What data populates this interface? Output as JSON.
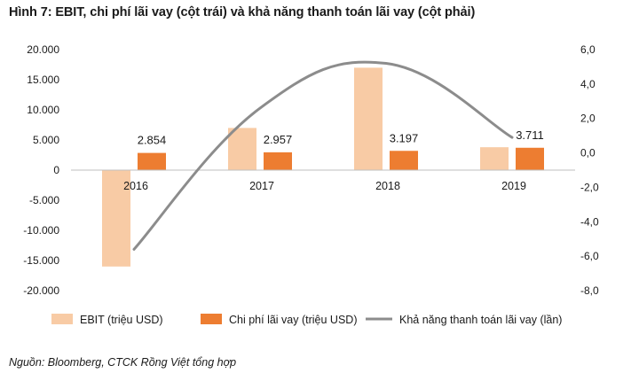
{
  "title": "Hình 7: EBIT, chi phí lãi vay (cột trái) và khả năng thanh toán lãi vay (cột phải)",
  "source": "Nguồn: Bloomberg, CTCK Rồng Việt tổng hợp",
  "colors": {
    "ebit": "#f8cba5",
    "interest": "#ed7d31",
    "coverage": "#8c8c8c",
    "axis": "#bfbfbf"
  },
  "chart_data": {
    "type": "bar",
    "categories": [
      "2016",
      "2017",
      "2018",
      "2019"
    ],
    "left_axis": {
      "ylim": [
        -20000,
        20000
      ],
      "ticks": [
        "-20.000",
        "-15.000",
        "-10.000",
        "-5.000",
        "0",
        "5.000",
        "10.000",
        "15.000",
        "20.000"
      ]
    },
    "right_axis": {
      "ylim": [
        -8,
        6
      ],
      "ticks": [
        "-8,0",
        "-6,0",
        "-4,0",
        "-2,0",
        "0,0",
        "2,0",
        "4,0",
        "6,0"
      ]
    },
    "series": [
      {
        "name": "EBIT (triệu USD)",
        "type": "bar",
        "axis": "left",
        "values": [
          -16000,
          7000,
          17000,
          3800
        ]
      },
      {
        "name": "Chi phí lãi vay (triệu USD)",
        "type": "bar",
        "axis": "left",
        "values": [
          2854,
          2957,
          3197,
          3711
        ],
        "labels": [
          "2.854",
          "2.957",
          "3.197",
          "3.711"
        ]
      },
      {
        "name": "Khả năng thanh toán lãi vay (lần)",
        "type": "line",
        "axis": "right",
        "values": [
          -5.6,
          2.6,
          5.2,
          0.9
        ]
      }
    ],
    "legend": [
      "EBIT (triệu USD)",
      "Chi phí lãi vay (triệu USD)",
      "Khả năng thanh toán lãi vay (lần)"
    ],
    "legend_position": "bottom",
    "grid": false
  }
}
